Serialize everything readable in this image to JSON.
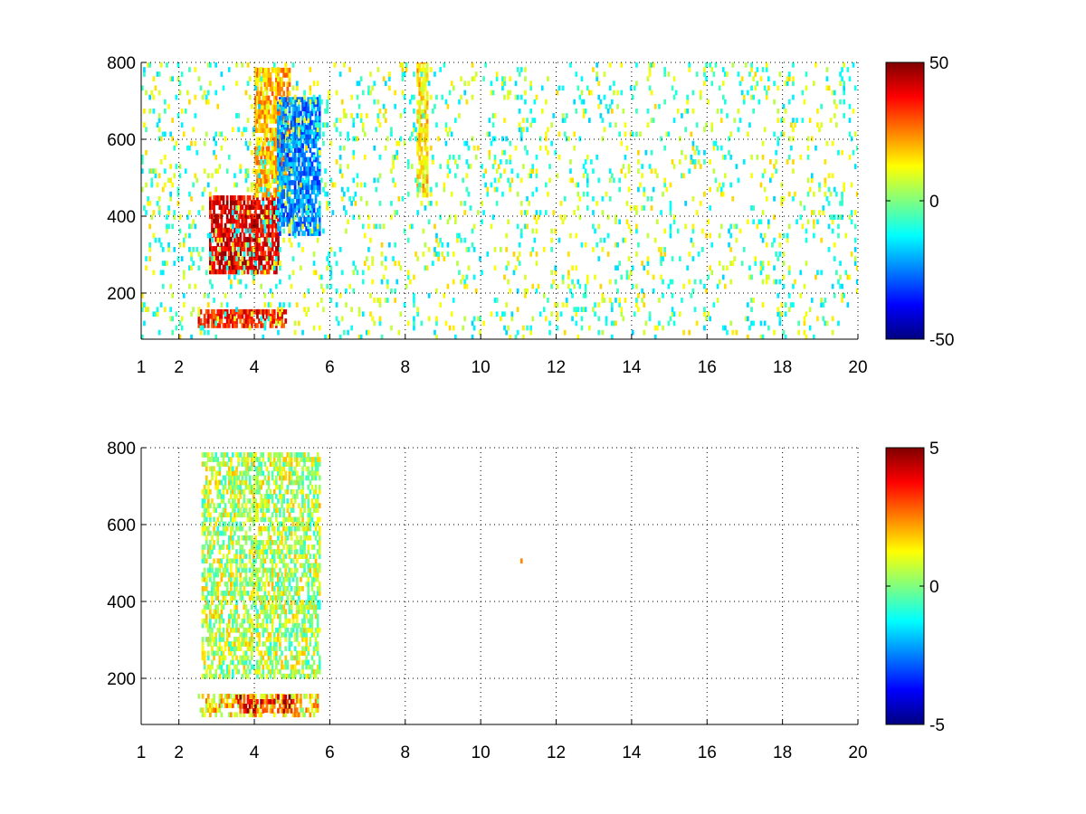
{
  "chart_data": [
    {
      "type": "heatmap",
      "title": "",
      "xlabel": "",
      "ylabel": "",
      "xlim": [
        1,
        20
      ],
      "ylim": [
        80,
        800
      ],
      "x_ticks": [
        1,
        2,
        4,
        6,
        8,
        10,
        12,
        14,
        16,
        18,
        20
      ],
      "y_ticks": [
        200,
        400,
        600,
        800
      ],
      "grid": true,
      "colormap": "jet",
      "colorbar": {
        "range": [
          -50,
          50
        ],
        "ticks": [
          50,
          0,
          -50
        ],
        "tick_labels": [
          "50",
          "0",
          "-50"
        ]
      },
      "regions": [
        {
          "x": [
            2.5,
            4.8
          ],
          "y": [
            110,
            150
          ],
          "value": 35
        },
        {
          "x": [
            2.8,
            4.6
          ],
          "y": [
            250,
            450
          ],
          "value": 40
        },
        {
          "x": [
            4.0,
            4.9
          ],
          "y": [
            450,
            780
          ],
          "value": 20
        },
        {
          "x": [
            4.6,
            5.7
          ],
          "y": [
            350,
            700
          ],
          "value": -25
        },
        {
          "x": [
            8.3,
            8.6
          ],
          "y": [
            450,
            800
          ],
          "value": 15
        },
        {
          "x": [
            1.0,
            20.0
          ],
          "y": [
            80,
            800
          ],
          "value": 2
        }
      ]
    },
    {
      "type": "heatmap",
      "title": "",
      "xlabel": "",
      "ylabel": "",
      "xlim": [
        1,
        20
      ],
      "ylim": [
        80,
        800
      ],
      "x_ticks": [
        1,
        2,
        4,
        6,
        8,
        10,
        12,
        14,
        16,
        18,
        20
      ],
      "y_ticks": [
        200,
        400,
        600,
        800
      ],
      "grid": true,
      "colormap": "jet",
      "colorbar": {
        "range": [
          -5,
          5
        ],
        "ticks": [
          5,
          0,
          -5
        ],
        "tick_labels": [
          "5",
          "0",
          "-5"
        ]
      },
      "regions": [
        {
          "x": [
            2.5,
            5.7
          ],
          "y": [
            100,
            160
          ],
          "value": 1.5
        },
        {
          "x": [
            3.5,
            5.0
          ],
          "y": [
            110,
            150
          ],
          "value": 3.5
        },
        {
          "x": [
            2.6,
            5.7
          ],
          "y": [
            200,
            780
          ],
          "value": 0.5
        },
        {
          "x": [
            11.0,
            11.1
          ],
          "y": [
            500,
            530
          ],
          "value": 3
        }
      ]
    }
  ]
}
